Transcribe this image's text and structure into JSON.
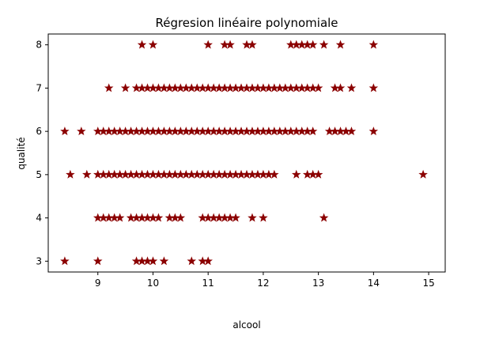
{
  "chart_data": {
    "type": "scatter",
    "title": "Régresion linéaire polynomiale",
    "xlabel": "alcool",
    "ylabel": "qualité",
    "xlim": [
      8.1,
      15.3
    ],
    "ylim": [
      2.75,
      8.25
    ],
    "x_ticks": [
      9,
      10,
      11,
      12,
      13,
      14,
      15
    ],
    "y_ticks": [
      3,
      4,
      5,
      6,
      7,
      8
    ],
    "grid": false,
    "marker": "star",
    "color": "#8b0000",
    "series": [
      {
        "points": [
          [
            9.8,
            8
          ],
          [
            10.0,
            8
          ],
          [
            11.0,
            8
          ],
          [
            11.3,
            8
          ],
          [
            11.4,
            8
          ],
          [
            11.7,
            8
          ],
          [
            11.8,
            8
          ],
          [
            12.5,
            8
          ],
          [
            12.6,
            8
          ],
          [
            12.7,
            8
          ],
          [
            12.8,
            8
          ],
          [
            12.9,
            8
          ],
          [
            13.1,
            8
          ],
          [
            13.4,
            8
          ],
          [
            14.0,
            8
          ],
          [
            9.2,
            7
          ],
          [
            9.5,
            7
          ],
          [
            9.7,
            7
          ],
          [
            9.8,
            7
          ],
          [
            9.9,
            7
          ],
          [
            10.0,
            7
          ],
          [
            10.1,
            7
          ],
          [
            10.2,
            7
          ],
          [
            10.3,
            7
          ],
          [
            10.4,
            7
          ],
          [
            10.5,
            7
          ],
          [
            10.6,
            7
          ],
          [
            10.7,
            7
          ],
          [
            10.8,
            7
          ],
          [
            10.9,
            7
          ],
          [
            11.0,
            7
          ],
          [
            11.1,
            7
          ],
          [
            11.2,
            7
          ],
          [
            11.3,
            7
          ],
          [
            11.4,
            7
          ],
          [
            11.5,
            7
          ],
          [
            11.6,
            7
          ],
          [
            11.7,
            7
          ],
          [
            11.8,
            7
          ],
          [
            11.9,
            7
          ],
          [
            12.0,
            7
          ],
          [
            12.1,
            7
          ],
          [
            12.2,
            7
          ],
          [
            12.3,
            7
          ],
          [
            12.4,
            7
          ],
          [
            12.5,
            7
          ],
          [
            12.6,
            7
          ],
          [
            12.7,
            7
          ],
          [
            12.8,
            7
          ],
          [
            12.9,
            7
          ],
          [
            13.0,
            7
          ],
          [
            13.3,
            7
          ],
          [
            13.4,
            7
          ],
          [
            13.6,
            7
          ],
          [
            14.0,
            7
          ],
          [
            8.4,
            6
          ],
          [
            8.7,
            6
          ],
          [
            9.0,
            6
          ],
          [
            9.1,
            6
          ],
          [
            9.2,
            6
          ],
          [
            9.3,
            6
          ],
          [
            9.4,
            6
          ],
          [
            9.5,
            6
          ],
          [
            9.6,
            6
          ],
          [
            9.7,
            6
          ],
          [
            9.8,
            6
          ],
          [
            9.9,
            6
          ],
          [
            10.0,
            6
          ],
          [
            10.1,
            6
          ],
          [
            10.2,
            6
          ],
          [
            10.3,
            6
          ],
          [
            10.4,
            6
          ],
          [
            10.5,
            6
          ],
          [
            10.6,
            6
          ],
          [
            10.7,
            6
          ],
          [
            10.8,
            6
          ],
          [
            10.9,
            6
          ],
          [
            11.0,
            6
          ],
          [
            11.1,
            6
          ],
          [
            11.2,
            6
          ],
          [
            11.3,
            6
          ],
          [
            11.4,
            6
          ],
          [
            11.5,
            6
          ],
          [
            11.6,
            6
          ],
          [
            11.7,
            6
          ],
          [
            11.8,
            6
          ],
          [
            11.9,
            6
          ],
          [
            12.0,
            6
          ],
          [
            12.1,
            6
          ],
          [
            12.2,
            6
          ],
          [
            12.3,
            6
          ],
          [
            12.4,
            6
          ],
          [
            12.5,
            6
          ],
          [
            12.6,
            6
          ],
          [
            12.7,
            6
          ],
          [
            12.8,
            6
          ],
          [
            12.9,
            6
          ],
          [
            13.2,
            6
          ],
          [
            13.3,
            6
          ],
          [
            13.4,
            6
          ],
          [
            13.5,
            6
          ],
          [
            13.6,
            6
          ],
          [
            14.0,
            6
          ],
          [
            8.5,
            5
          ],
          [
            8.8,
            5
          ],
          [
            9.0,
            5
          ],
          [
            9.1,
            5
          ],
          [
            9.2,
            5
          ],
          [
            9.3,
            5
          ],
          [
            9.4,
            5
          ],
          [
            9.5,
            5
          ],
          [
            9.6,
            5
          ],
          [
            9.7,
            5
          ],
          [
            9.8,
            5
          ],
          [
            9.9,
            5
          ],
          [
            10.0,
            5
          ],
          [
            10.1,
            5
          ],
          [
            10.2,
            5
          ],
          [
            10.3,
            5
          ],
          [
            10.4,
            5
          ],
          [
            10.5,
            5
          ],
          [
            10.6,
            5
          ],
          [
            10.7,
            5
          ],
          [
            10.8,
            5
          ],
          [
            10.9,
            5
          ],
          [
            11.0,
            5
          ],
          [
            11.1,
            5
          ],
          [
            11.2,
            5
          ],
          [
            11.3,
            5
          ],
          [
            11.4,
            5
          ],
          [
            11.5,
            5
          ],
          [
            11.6,
            5
          ],
          [
            11.7,
            5
          ],
          [
            11.8,
            5
          ],
          [
            11.9,
            5
          ],
          [
            12.0,
            5
          ],
          [
            12.1,
            5
          ],
          [
            12.2,
            5
          ],
          [
            12.6,
            5
          ],
          [
            12.8,
            5
          ],
          [
            12.9,
            5
          ],
          [
            13.0,
            5
          ],
          [
            14.9,
            5
          ],
          [
            9.0,
            4
          ],
          [
            9.1,
            4
          ],
          [
            9.2,
            4
          ],
          [
            9.3,
            4
          ],
          [
            9.4,
            4
          ],
          [
            9.6,
            4
          ],
          [
            9.7,
            4
          ],
          [
            9.8,
            4
          ],
          [
            9.9,
            4
          ],
          [
            10.0,
            4
          ],
          [
            10.1,
            4
          ],
          [
            10.3,
            4
          ],
          [
            10.4,
            4
          ],
          [
            10.5,
            4
          ],
          [
            10.9,
            4
          ],
          [
            11.0,
            4
          ],
          [
            11.1,
            4
          ],
          [
            11.2,
            4
          ],
          [
            11.3,
            4
          ],
          [
            11.4,
            4
          ],
          [
            11.5,
            4
          ],
          [
            11.8,
            4
          ],
          [
            12.0,
            4
          ],
          [
            13.1,
            4
          ],
          [
            8.4,
            3
          ],
          [
            9.0,
            3
          ],
          [
            9.7,
            3
          ],
          [
            9.8,
            3
          ],
          [
            9.9,
            3
          ],
          [
            10.0,
            3
          ],
          [
            10.2,
            3
          ],
          [
            10.7,
            3
          ],
          [
            10.9,
            3
          ],
          [
            11.0,
            3
          ]
        ]
      }
    ]
  }
}
